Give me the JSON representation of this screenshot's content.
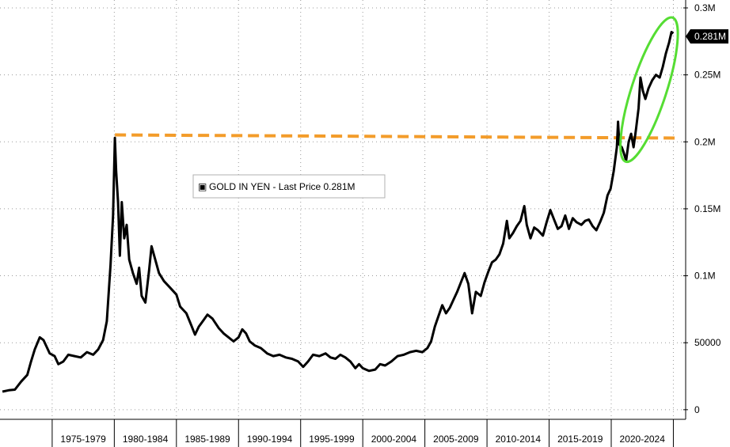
{
  "chart_data": {
    "type": "line",
    "title": "",
    "xlabel": "",
    "ylabel": "",
    "x_tick_labels": [
      "1975-1979",
      "1980-1984",
      "1985-1989",
      "1990-1994",
      "1995-1999",
      "2000-2004",
      "2005-2009",
      "2010-2014",
      "2015-2019",
      "2020-2024"
    ],
    "y_tick_labels": [
      "0",
      "50000",
      "0.1M",
      "0.15M",
      "0.2M",
      "0.25M",
      "0.3M"
    ],
    "xlim": [
      1970.8,
      2025.8
    ],
    "ylim": [
      -6000,
      300000
    ],
    "grid": true,
    "legend_position": "center-left",
    "legend_marker": "▣",
    "legend_text": "GOLD IN YEN - Last Price 0.281M",
    "last_price_label": "0.281M",
    "series": [
      {
        "name": "GOLD IN YEN",
        "color": "#000000",
        "points": [
          [
            1971.0,
            13500
          ],
          [
            1971.5,
            14500
          ],
          [
            1972.0,
            15000
          ],
          [
            1972.5,
            21000
          ],
          [
            1973.0,
            26000
          ],
          [
            1973.3,
            36000
          ],
          [
            1973.6,
            45000
          ],
          [
            1974.0,
            54000
          ],
          [
            1974.3,
            52000
          ],
          [
            1974.8,
            42000
          ],
          [
            1975.2,
            40000
          ],
          [
            1975.5,
            34000
          ],
          [
            1975.9,
            36000
          ],
          [
            1976.3,
            41000
          ],
          [
            1976.8,
            40000
          ],
          [
            1977.3,
            39000
          ],
          [
            1977.8,
            43000
          ],
          [
            1978.3,
            41000
          ],
          [
            1978.7,
            45000
          ],
          [
            1979.1,
            52000
          ],
          [
            1979.4,
            66000
          ],
          [
            1979.7,
            108000
          ],
          [
            1979.9,
            145000
          ],
          [
            1980.05,
            203000
          ],
          [
            1980.15,
            178000
          ],
          [
            1980.3,
            155000
          ],
          [
            1980.45,
            115000
          ],
          [
            1980.6,
            155000
          ],
          [
            1980.8,
            128000
          ],
          [
            1981.0,
            138000
          ],
          [
            1981.2,
            112000
          ],
          [
            1981.5,
            102000
          ],
          [
            1981.8,
            94000
          ],
          [
            1982.0,
            106000
          ],
          [
            1982.2,
            85000
          ],
          [
            1982.5,
            80000
          ],
          [
            1982.8,
            104000
          ],
          [
            1983.0,
            122000
          ],
          [
            1983.3,
            112000
          ],
          [
            1983.6,
            102000
          ],
          [
            1984.0,
            96000
          ],
          [
            1984.5,
            91000
          ],
          [
            1985.0,
            86000
          ],
          [
            1985.3,
            77000
          ],
          [
            1985.8,
            72000
          ],
          [
            1986.2,
            63000
          ],
          [
            1986.5,
            56000
          ],
          [
            1986.8,
            62000
          ],
          [
            1987.2,
            67000
          ],
          [
            1987.5,
            71000
          ],
          [
            1987.9,
            68000
          ],
          [
            1988.4,
            61000
          ],
          [
            1988.8,
            57000
          ],
          [
            1989.2,
            54000
          ],
          [
            1989.6,
            51000
          ],
          [
            1990.0,
            54000
          ],
          [
            1990.3,
            60000
          ],
          [
            1990.6,
            57000
          ],
          [
            1990.9,
            51000
          ],
          [
            1991.3,
            48000
          ],
          [
            1991.8,
            46000
          ],
          [
            1992.3,
            42000
          ],
          [
            1992.8,
            40000
          ],
          [
            1993.3,
            41000
          ],
          [
            1993.8,
            39000
          ],
          [
            1994.3,
            38000
          ],
          [
            1994.8,
            36000
          ],
          [
            1995.2,
            32000
          ],
          [
            1995.6,
            36000
          ],
          [
            1996.0,
            41000
          ],
          [
            1996.5,
            40000
          ],
          [
            1997.0,
            42000
          ],
          [
            1997.4,
            39000
          ],
          [
            1997.8,
            38000
          ],
          [
            1998.2,
            41000
          ],
          [
            1998.6,
            39000
          ],
          [
            1999.0,
            36000
          ],
          [
            1999.4,
            31000
          ],
          [
            1999.7,
            34000
          ],
          [
            2000.0,
            31000
          ],
          [
            2000.5,
            29000
          ],
          [
            2001.0,
            30000
          ],
          [
            2001.4,
            34000
          ],
          [
            2001.8,
            33000
          ],
          [
            2002.3,
            36000
          ],
          [
            2002.8,
            40000
          ],
          [
            2003.3,
            41000
          ],
          [
            2003.8,
            43000
          ],
          [
            2004.3,
            44000
          ],
          [
            2004.8,
            43000
          ],
          [
            2005.2,
            46000
          ],
          [
            2005.5,
            51000
          ],
          [
            2005.8,
            62000
          ],
          [
            2006.1,
            70000
          ],
          [
            2006.4,
            78000
          ],
          [
            2006.7,
            72000
          ],
          [
            2007.0,
            76000
          ],
          [
            2007.3,
            82000
          ],
          [
            2007.6,
            88000
          ],
          [
            2007.9,
            95000
          ],
          [
            2008.2,
            102000
          ],
          [
            2008.5,
            94000
          ],
          [
            2008.8,
            72000
          ],
          [
            2009.1,
            88000
          ],
          [
            2009.5,
            85000
          ],
          [
            2009.8,
            95000
          ],
          [
            2010.1,
            103000
          ],
          [
            2010.4,
            110000
          ],
          [
            2010.7,
            112000
          ],
          [
            2011.0,
            116000
          ],
          [
            2011.3,
            124000
          ],
          [
            2011.6,
            141000
          ],
          [
            2011.8,
            128000
          ],
          [
            2012.1,
            132000
          ],
          [
            2012.4,
            137000
          ],
          [
            2012.7,
            141000
          ],
          [
            2013.0,
            152000
          ],
          [
            2013.2,
            138000
          ],
          [
            2013.5,
            128000
          ],
          [
            2013.8,
            136000
          ],
          [
            2014.1,
            134000
          ],
          [
            2014.5,
            130000
          ],
          [
            2014.8,
            140000
          ],
          [
            2015.1,
            149000
          ],
          [
            2015.4,
            142000
          ],
          [
            2015.7,
            135000
          ],
          [
            2016.0,
            137000
          ],
          [
            2016.3,
            145000
          ],
          [
            2016.6,
            135000
          ],
          [
            2016.9,
            143000
          ],
          [
            2017.2,
            140000
          ],
          [
            2017.6,
            138000
          ],
          [
            2017.9,
            141000
          ],
          [
            2018.2,
            142000
          ],
          [
            2018.5,
            137000
          ],
          [
            2018.8,
            134000
          ],
          [
            2019.1,
            140000
          ],
          [
            2019.4,
            147000
          ],
          [
            2019.7,
            160000
          ],
          [
            2019.95,
            165000
          ],
          [
            2020.2,
            178000
          ],
          [
            2020.45,
            196000
          ],
          [
            2020.55,
            215000
          ],
          [
            2020.65,
            198000
          ],
          [
            2020.85,
            196000
          ],
          [
            2021.0,
            192000
          ],
          [
            2021.2,
            186000
          ],
          [
            2021.4,
            200000
          ],
          [
            2021.6,
            206000
          ],
          [
            2021.8,
            196000
          ],
          [
            2022.0,
            210000
          ],
          [
            2022.2,
            225000
          ],
          [
            2022.35,
            248000
          ],
          [
            2022.55,
            238000
          ],
          [
            2022.75,
            232000
          ],
          [
            2023.0,
            240000
          ],
          [
            2023.3,
            246000
          ],
          [
            2023.6,
            250000
          ],
          [
            2023.9,
            248000
          ],
          [
            2024.15,
            256000
          ],
          [
            2024.4,
            266000
          ],
          [
            2024.65,
            274000
          ],
          [
            2024.85,
            282000
          ],
          [
            2025.0,
            281000
          ]
        ]
      }
    ],
    "annotations": {
      "reference_line": {
        "value": 204000,
        "color": "#f39c2a",
        "style": "dashed"
      },
      "ellipse_highlight": {
        "color": "#55dd33",
        "x_range": [
          2020.3,
          2025.8
        ],
        "y_range": [
          186000,
          292000
        ]
      }
    }
  }
}
